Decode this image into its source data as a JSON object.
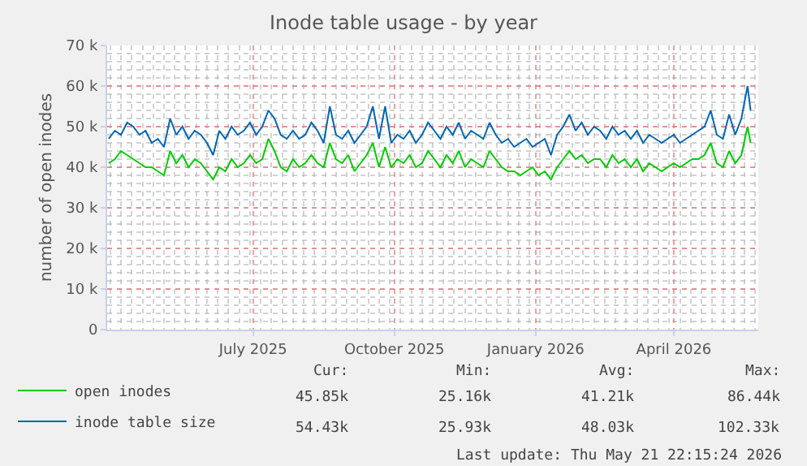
{
  "chart_data": {
    "type": "line",
    "title": "Inode table usage - by year",
    "ylabel": "number of open inodes",
    "x": [
      "2025-03-29",
      "2025-04-02",
      "2025-04-06",
      "2025-04-10",
      "2025-04-14",
      "2025-04-18",
      "2025-04-22",
      "2025-04-26",
      "2025-04-30",
      "2025-05-04",
      "2025-05-08",
      "2025-05-12",
      "2025-05-16",
      "2025-05-20",
      "2025-05-24",
      "2025-05-28",
      "2025-06-01",
      "2025-06-05",
      "2025-06-09",
      "2025-06-13",
      "2025-06-17",
      "2025-06-21",
      "2025-06-25",
      "2025-06-29",
      "2025-07-03",
      "2025-07-07",
      "2025-07-11",
      "2025-07-15",
      "2025-07-19",
      "2025-07-23",
      "2025-07-27",
      "2025-07-31",
      "2025-08-04",
      "2025-08-08",
      "2025-08-12",
      "2025-08-16",
      "2025-08-20",
      "2025-08-24",
      "2025-08-28",
      "2025-09-01",
      "2025-09-05",
      "2025-09-09",
      "2025-09-13",
      "2025-09-17",
      "2025-09-21",
      "2025-09-25",
      "2025-09-29",
      "2025-10-03",
      "2025-10-07",
      "2025-10-11",
      "2025-10-15",
      "2025-10-19",
      "2025-10-23",
      "2025-10-27",
      "2025-10-31",
      "2025-11-04",
      "2025-11-08",
      "2025-11-12",
      "2025-11-16",
      "2025-11-20",
      "2025-11-24",
      "2025-11-28",
      "2025-12-02",
      "2025-12-06",
      "2025-12-10",
      "2025-12-14",
      "2025-12-18",
      "2025-12-22",
      "2025-12-26",
      "2025-12-30",
      "2026-01-03",
      "2026-01-07",
      "2026-01-11",
      "2026-01-15",
      "2026-01-19",
      "2026-01-23",
      "2026-01-27",
      "2026-01-31",
      "2026-02-04",
      "2026-02-08",
      "2026-02-12",
      "2026-02-16",
      "2026-02-20",
      "2026-02-24",
      "2026-02-28",
      "2026-03-04",
      "2026-03-08",
      "2026-03-12",
      "2026-03-16",
      "2026-03-20",
      "2026-03-24",
      "2026-03-28",
      "2026-04-01",
      "2026-04-05",
      "2026-04-09",
      "2026-04-13",
      "2026-04-17",
      "2026-04-21",
      "2026-04-25",
      "2026-04-29",
      "2026-05-03",
      "2026-05-07",
      "2026-05-11",
      "2026-05-15",
      "2026-05-19",
      "2026-05-21"
    ],
    "series": [
      {
        "name": "open inodes",
        "color": "#00cc00",
        "values": [
          41000,
          42000,
          44000,
          43000,
          42000,
          41000,
          40000,
          40000,
          39000,
          38000,
          44000,
          41000,
          43000,
          40000,
          42000,
          41000,
          39000,
          37000,
          40000,
          39000,
          42000,
          40000,
          41000,
          43000,
          41000,
          42000,
          47000,
          44000,
          40000,
          39000,
          42000,
          40000,
          41000,
          43000,
          41000,
          40000,
          46000,
          42000,
          41000,
          43000,
          39000,
          41000,
          43000,
          46000,
          40000,
          45000,
          40000,
          42000,
          41000,
          43000,
          40000,
          41000,
          44000,
          42000,
          40000,
          43000,
          41000,
          44000,
          40000,
          42000,
          41000,
          40000,
          44000,
          42000,
          40000,
          39000,
          39000,
          38000,
          39000,
          40000,
          38000,
          39000,
          37000,
          40000,
          42000,
          44000,
          42000,
          43000,
          41000,
          42000,
          42000,
          40000,
          43000,
          41000,
          42000,
          40000,
          42000,
          39000,
          41000,
          40000,
          39000,
          40000,
          41000,
          40000,
          41000,
          42000,
          42000,
          43000,
          46000,
          41000,
          40000,
          44000,
          41000,
          43000,
          50000,
          46000
        ]
      },
      {
        "name": "inode table size",
        "color": "#0066b3",
        "values": [
          47000,
          49000,
          48000,
          51000,
          50000,
          48000,
          49000,
          46000,
          47000,
          45000,
          52000,
          48000,
          50000,
          47000,
          49000,
          48000,
          46000,
          43000,
          49000,
          47000,
          50000,
          48000,
          49000,
          51000,
          48000,
          50000,
          54000,
          52000,
          48000,
          47000,
          49000,
          47000,
          48000,
          51000,
          49000,
          46000,
          55000,
          48000,
          47000,
          49000,
          46000,
          48000,
          50000,
          55000,
          47000,
          55000,
          46000,
          48000,
          47000,
          49000,
          46000,
          48000,
          51000,
          49000,
          47000,
          50000,
          48000,
          51000,
          47000,
          49000,
          48000,
          47000,
          51000,
          48000,
          46000,
          47000,
          45000,
          46000,
          47000,
          45000,
          46000,
          47000,
          43000,
          48000,
          50000,
          53000,
          49000,
          51000,
          48000,
          50000,
          49000,
          47000,
          50000,
          48000,
          49000,
          47000,
          49000,
          46000,
          48000,
          47000,
          46000,
          47000,
          48000,
          46000,
          47000,
          48000,
          49000,
          50000,
          54000,
          48000,
          47000,
          53000,
          48000,
          52000,
          60000,
          54000
        ]
      }
    ],
    "xlim": [
      "2025-03-28",
      "2026-05-26"
    ],
    "xticks": [
      {
        "value": "2025-07-01",
        "label": "July 2025"
      },
      {
        "value": "2025-10-01",
        "label": "October 2025"
      },
      {
        "value": "2026-01-01",
        "label": "January 2026"
      },
      {
        "value": "2026-04-01",
        "label": "April 2026"
      }
    ],
    "ylim": [
      0,
      70000
    ],
    "yticks": [
      0,
      {
        "value": 10000,
        "label": "10 k"
      },
      {
        "value": 20000,
        "label": "20 k"
      },
      {
        "value": 30000,
        "label": "30 k"
      },
      {
        "value": 40000,
        "label": "40 k"
      },
      {
        "value": 50000,
        "label": "50 k"
      },
      {
        "value": 60000,
        "label": "60 k"
      },
      {
        "value": 70000,
        "label": "70 k"
      }
    ],
    "grid": true,
    "legend": "bottom left",
    "marker": "none",
    "line_style": "solid",
    "annotations": [
      "Cur:",
      "Min:",
      "Avg:",
      "Max:",
      "45.85k",
      "25.16k",
      "41.21k",
      "86.44k",
      "54.43k",
      "25.93k",
      "48.03k",
      "102.33k",
      "Last update: Thu May 21 22:15:24 2026"
    ]
  }
}
